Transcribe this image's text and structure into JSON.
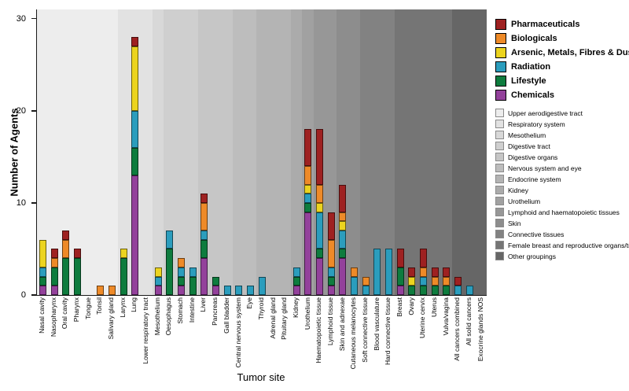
{
  "figure": {
    "ylabel": "Number of Agents",
    "xlabel": "Tumor site",
    "yticks": [
      0,
      10,
      20,
      30
    ]
  },
  "chart_data": {
    "type": "bar",
    "stacked": true,
    "title": "",
    "xlabel": "Tumor site",
    "ylabel": "Number of Agents",
    "ylim": [
      0,
      31
    ],
    "grid": false,
    "legend_position": "right",
    "categories": [
      "Nasal cavity",
      "Nasopharynx",
      "Oral cavity",
      "Pharynx",
      "Tongue",
      "Tonsil",
      "Salivary gland",
      "Larynx",
      "Lung",
      "Lower respiratory tract",
      "Mesothelium",
      "Oesophagus",
      "Stomach",
      "Intestine",
      "Liver",
      "Pancreas",
      "Gall bladder",
      "Central nervous system",
      "Eye",
      "Thyroid",
      "Adrenal gland",
      "Pituitary gland",
      "Kidney",
      "Urothelium",
      "Haematopoietic tissue",
      "Lymphoid tissue",
      "Skin and adnexae",
      "Cutaneous melanocytes",
      "Soft connective tissue",
      "Blood vasculature",
      "Hard connective tissue",
      "Breast",
      "Ovary",
      "Uterine cervix",
      "Uterus",
      "Vulva/vagina",
      "All cancers combined",
      "All solid cancers",
      "Exocrine glands NOS"
    ],
    "series": [
      {
        "name": "Chemicals",
        "color": "#93419b",
        "values": [
          1,
          1,
          0,
          0,
          0,
          0,
          0,
          0,
          13,
          0,
          1,
          0,
          1,
          0,
          4,
          1,
          0,
          0,
          0,
          0,
          0,
          0,
          1,
          9,
          4,
          1,
          4,
          0,
          0,
          0,
          0,
          1,
          0,
          0,
          0,
          0,
          0,
          0,
          0
        ]
      },
      {
        "name": "Lifestyle",
        "color": "#0e7c3e",
        "values": [
          1,
          2,
          4,
          4,
          0,
          0,
          0,
          4,
          3,
          0,
          0,
          5,
          1,
          2,
          2,
          1,
          0,
          0,
          0,
          0,
          0,
          0,
          1,
          1,
          1,
          1,
          1,
          0,
          0,
          0,
          0,
          2,
          1,
          1,
          1,
          1,
          0,
          0,
          0
        ]
      },
      {
        "name": "Radiation",
        "color": "#2b9dbd",
        "values": [
          1,
          0,
          0,
          0,
          0,
          0,
          0,
          0,
          4,
          0,
          1,
          2,
          1,
          1,
          1,
          0,
          1,
          1,
          1,
          2,
          0,
          0,
          1,
          1,
          4,
          1,
          2,
          2,
          1,
          5,
          5,
          0,
          0,
          1,
          0,
          0,
          1,
          1,
          0
        ]
      },
      {
        "name": "Arsenic, Metals, Fibres & Dusts",
        "color": "#ecd41f",
        "values": [
          3,
          0,
          0,
          0,
          0,
          0,
          0,
          1,
          7,
          0,
          1,
          0,
          0,
          0,
          0,
          0,
          0,
          0,
          0,
          0,
          0,
          0,
          0,
          1,
          1,
          0,
          1,
          0,
          0,
          0,
          0,
          0,
          1,
          0,
          0,
          0,
          0,
          0,
          0
        ]
      },
      {
        "name": "Biologicals",
        "color": "#ee8a28",
        "values": [
          0,
          1,
          2,
          0,
          0,
          1,
          1,
          0,
          0,
          0,
          0,
          0,
          1,
          0,
          3,
          0,
          0,
          0,
          0,
          0,
          0,
          0,
          0,
          2,
          2,
          3,
          1,
          1,
          1,
          0,
          0,
          0,
          0,
          1,
          1,
          1,
          0,
          0,
          0
        ]
      },
      {
        "name": "Pharmaceuticals",
        "color": "#9e2121",
        "values": [
          0,
          1,
          1,
          1,
          0,
          0,
          0,
          0,
          1,
          0,
          0,
          0,
          0,
          0,
          1,
          0,
          0,
          0,
          0,
          0,
          0,
          0,
          0,
          4,
          6,
          3,
          3,
          0,
          0,
          0,
          0,
          2,
          1,
          2,
          1,
          1,
          1,
          0,
          0
        ]
      }
    ],
    "legend_agents": [
      {
        "label": "Pharmaceuticals",
        "color": "#9e2121"
      },
      {
        "label": "Biologicals",
        "color": "#ee8a28"
      },
      {
        "label": "Arsenic, Metals, Fibres & Dusts",
        "color": "#ecd41f"
      },
      {
        "label": "Radiation",
        "color": "#2b9dbd"
      },
      {
        "label": "Lifestyle",
        "color": "#0e7c3e"
      },
      {
        "label": "Chemicals",
        "color": "#93419b"
      }
    ],
    "groups": [
      {
        "label": "Upper aerodigestive tract",
        "span": 7,
        "color": "#ededed"
      },
      {
        "label": "Respiratory system",
        "span": 3,
        "color": "#e2e2e2"
      },
      {
        "label": "Mesothelium",
        "span": 1,
        "color": "#d8d8d8"
      },
      {
        "label": "Digestive tract",
        "span": 3,
        "color": "#cfcfcf"
      },
      {
        "label": "Digestive organs",
        "span": 3,
        "color": "#c6c6c6"
      },
      {
        "label": "Nervous system and eye",
        "span": 2,
        "color": "#bdbdbd"
      },
      {
        "label": "Endocrine system",
        "span": 3,
        "color": "#b4b4b4"
      },
      {
        "label": "Kidney",
        "span": 1,
        "color": "#ababab"
      },
      {
        "label": "Urothelium",
        "span": 1,
        "color": "#a1a1a1"
      },
      {
        "label": "Lymphoid and haematopoietic tissues",
        "span": 2,
        "color": "#979797"
      },
      {
        "label": "Skin",
        "span": 2,
        "color": "#8d8d8d"
      },
      {
        "label": "Connective tissues",
        "span": 3,
        "color": "#828282"
      },
      {
        "label": "Female breast and reproductive organs/tract",
        "span": 5,
        "color": "#757575"
      },
      {
        "label": "Other groupings",
        "span": 3,
        "color": "#666666"
      }
    ]
  }
}
